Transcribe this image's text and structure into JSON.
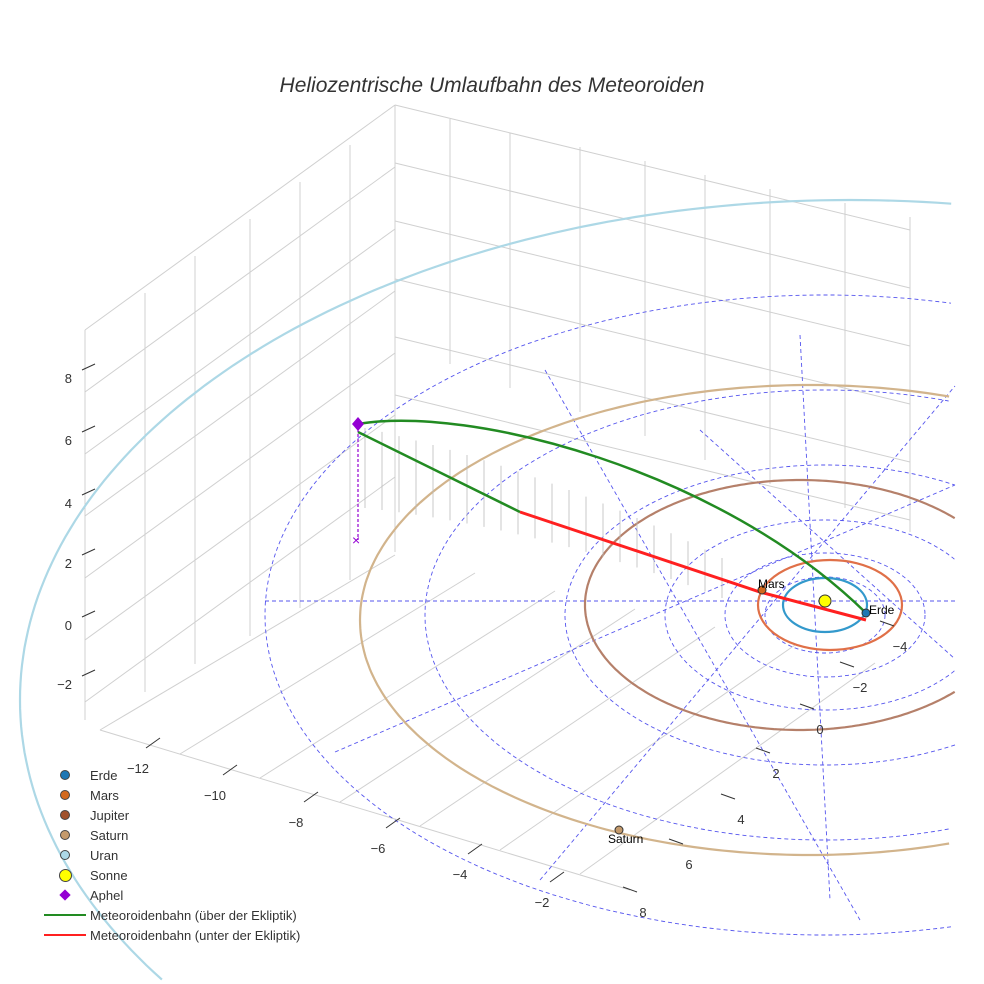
{
  "chart_data": {
    "type": "3d-line-scatter",
    "title": "Heliozentrische Umlaufbahn des Meteoroiden",
    "x_ticks": [
      "−12",
      "−10",
      "−8",
      "−6",
      "−4",
      "−2"
    ],
    "y_ticks": [
      "8",
      "6",
      "4",
      "2",
      "0",
      "−2",
      "−4"
    ],
    "z_ticks": [
      "8",
      "6",
      "4",
      "2",
      "0",
      "−2"
    ],
    "xlim": [
      -13,
      -1
    ],
    "ylim": [
      -5,
      9
    ],
    "zlim": [
      -3,
      9
    ],
    "grid": true,
    "legend_position": "bottom-left",
    "annotations": [
      "Mars",
      "Erde",
      "Saturn"
    ],
    "legend": [
      {
        "label": "Erde",
        "color": "#1f77b4",
        "marker": "circle"
      },
      {
        "label": "Mars",
        "color": "#d2691e",
        "marker": "circle"
      },
      {
        "label": "Jupiter",
        "color": "#a0522d",
        "marker": "circle"
      },
      {
        "label": "Saturn",
        "color": "#c49a6c",
        "marker": "circle"
      },
      {
        "label": "Uran",
        "color": "#add8e6",
        "marker": "circle"
      },
      {
        "label": "Sonne",
        "color": "#ffff00",
        "marker": "circle"
      },
      {
        "label": "Aphel",
        "color": "#9400d3",
        "marker": "diamond"
      },
      {
        "label": "Meteoroidenbahn (über der Ekliptik)",
        "color": "#228b22",
        "marker": "line"
      },
      {
        "label": "Meteoroidenbahn (unter der Ekliptik)",
        "color": "#ff2020",
        "marker": "line"
      }
    ],
    "planet_orbit_radii_au": {
      "Erde": 1.0,
      "Mars": 1.52,
      "Jupiter": 5.2,
      "Saturn": 9.5,
      "Uran": 19.2
    },
    "aphel_z": 6.2
  }
}
